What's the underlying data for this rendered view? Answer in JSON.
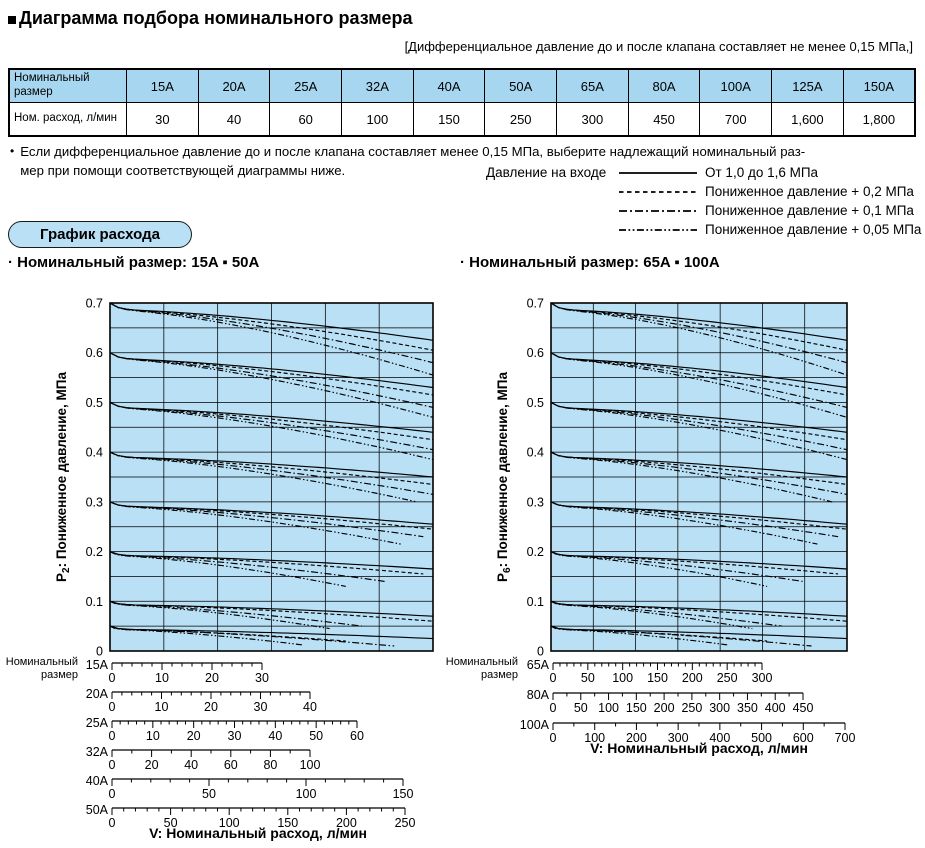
{
  "page": {
    "title": "Диаграмма подбора номинального размера",
    "note": "[Дифференциальное давление до и после клапана составляет не менее 0,15 МПа,]"
  },
  "bullet_note": {
    "bullet": "•",
    "lines": [
      "Если дифференциальное давление до и после клапана составляет менее 0,15 МПа, выберите надлежащий номинальный раз-",
      "мер при помощи соответствующей диаграммы ниже."
    ]
  },
  "size_table": {
    "row1_header": "Номинальный размер",
    "row2_header": "Ном. расход, л/мин",
    "sizes": [
      "15A",
      "20A",
      "25A",
      "32A",
      "40A",
      "50A",
      "65A",
      "80A",
      "100A",
      "125A",
      "150A"
    ],
    "flows": [
      "30",
      "40",
      "60",
      "100",
      "150",
      "250",
      "300",
      "450",
      "700",
      "1,600",
      "1,800"
    ]
  },
  "legend": {
    "label": "Давление на входе",
    "items": [
      {
        "style": "solid",
        "text": "От 1,0 до 1,6 МПа"
      },
      {
        "style": "dashed",
        "text": "Пониженное давление + 0,2 МПа"
      },
      {
        "style": "dashdot",
        "text": "Пониженное давление + 0,1 МПа"
      },
      {
        "style": "dashdotdot",
        "text": "Пониженное давление + 0,05 МПа"
      }
    ]
  },
  "badge": "График расхода",
  "colors": {
    "table_header": "#a7d7f0",
    "chart_bg": "#b9e0f5",
    "line": "#000000"
  },
  "chart_data": [
    {
      "type": "line",
      "title": "· Номинальный размер:  15A ▪ 50A",
      "ylabel": {
        "base": "P",
        "sub": "2",
        "rest": ": Пониженное давление, МПа"
      },
      "xlabel": "V: Номинальный расход, л/мин",
      "nominal_size_label": [
        "Номинальный",
        "размер"
      ],
      "ylim": [
        0,
        0.7
      ],
      "yticks": [
        "0.7",
        "0.6",
        "0.5",
        "0.4",
        "0.3",
        "0.2",
        "0.1",
        "0"
      ],
      "grid_columns": 6,
      "line_styles": [
        "solid",
        "dashed",
        "dashdot",
        "dashdotdot"
      ],
      "families": [
        {
          "start": 0.7,
          "ends": [
            0.625,
            0.605,
            0.58,
            0.555
          ],
          "end_t": [
            1,
            1,
            1,
            1
          ]
        },
        {
          "start": 0.6,
          "ends": [
            0.53,
            0.515,
            0.49,
            0.47
          ],
          "end_t": [
            1,
            1,
            1,
            1
          ]
        },
        {
          "start": 0.5,
          "ends": [
            0.44,
            0.425,
            0.405,
            0.385
          ],
          "end_t": [
            1,
            1,
            1,
            1
          ]
        },
        {
          "start": 0.4,
          "ends": [
            0.35,
            0.335,
            0.315,
            0.3
          ],
          "end_t": [
            1,
            1,
            1,
            0.95
          ]
        },
        {
          "start": 0.3,
          "ends": [
            0.255,
            0.245,
            0.23,
            0.215
          ],
          "end_t": [
            1,
            1,
            0.97,
            0.9
          ]
        },
        {
          "start": 0.2,
          "ends": [
            0.165,
            0.155,
            0.14,
            0.13
          ],
          "end_t": [
            1,
            0.97,
            0.85,
            0.73
          ]
        },
        {
          "start": 0.1,
          "ends": [
            0.07,
            0.06,
            0.05,
            0.045
          ],
          "end_t": [
            1,
            1,
            0.78,
            0.68
          ]
        },
        {
          "start": 0.05,
          "ends": [
            0.025,
            0.02,
            0.01,
            0.012
          ],
          "end_t": [
            1,
            0.73,
            0.88,
            0.6
          ]
        }
      ],
      "x_scales": [
        {
          "size": "15A",
          "max": 30,
          "labels": [
            0,
            10,
            20,
            30
          ],
          "minor": 2
        },
        {
          "size": "20A",
          "max": 40,
          "labels": [
            0,
            10,
            20,
            30,
            40
          ],
          "minor": 2
        },
        {
          "size": "25A",
          "max": 60,
          "labels": [
            0,
            10,
            20,
            30,
            40,
            50,
            60
          ],
          "minor": 2
        },
        {
          "size": "32A",
          "max": 100,
          "labels": [
            0,
            20,
            40,
            60,
            80,
            100
          ],
          "minor": 10
        },
        {
          "size": "40A",
          "max": 150,
          "labels": [
            0,
            50,
            100,
            150
          ],
          "minor": 10
        },
        {
          "size": "50A",
          "max": 250,
          "labels": [
            0,
            50,
            100,
            150,
            200,
            250
          ],
          "minor": 10
        }
      ]
    },
    {
      "type": "line",
      "title": "· Номинальный размер: 65A ▪ 100A",
      "ylabel": {
        "base": "P",
        "sub": "6",
        "rest": ": Пониженное давление, МПа"
      },
      "xlabel": "V: Номинальный расход, л/мин",
      "nominal_size_label": [
        "Номинальный",
        "размер"
      ],
      "ylim": [
        0,
        0.7
      ],
      "yticks": [
        "0.7",
        "0.6",
        "0.5",
        "0.4",
        "0.3",
        "0.2",
        "0.1",
        "0"
      ],
      "grid_columns": 7,
      "line_styles": [
        "solid",
        "dashed",
        "dashdot",
        "dashdotdot"
      ],
      "families": [
        {
          "start": 0.7,
          "ends": [
            0.625,
            0.605,
            0.58,
            0.555
          ],
          "end_t": [
            1,
            1,
            1,
            1
          ]
        },
        {
          "start": 0.6,
          "ends": [
            0.53,
            0.515,
            0.49,
            0.47
          ],
          "end_t": [
            1,
            1,
            1,
            1
          ]
        },
        {
          "start": 0.5,
          "ends": [
            0.44,
            0.425,
            0.405,
            0.385
          ],
          "end_t": [
            1,
            1,
            1,
            1
          ]
        },
        {
          "start": 0.4,
          "ends": [
            0.35,
            0.335,
            0.315,
            0.3
          ],
          "end_t": [
            1,
            1,
            1,
            0.95
          ]
        },
        {
          "start": 0.3,
          "ends": [
            0.255,
            0.245,
            0.23,
            0.215
          ],
          "end_t": [
            1,
            1,
            0.97,
            0.9
          ]
        },
        {
          "start": 0.2,
          "ends": [
            0.165,
            0.155,
            0.14,
            0.13
          ],
          "end_t": [
            1,
            0.97,
            0.85,
            0.73
          ]
        },
        {
          "start": 0.1,
          "ends": [
            0.07,
            0.06,
            0.05,
            0.045
          ],
          "end_t": [
            1,
            1,
            0.78,
            0.68
          ]
        },
        {
          "start": 0.05,
          "ends": [
            0.025,
            0.02,
            0.01,
            0.012
          ],
          "end_t": [
            1,
            0.73,
            0.88,
            0.6
          ]
        }
      ],
      "x_scales": [
        {
          "size": "65A",
          "max": 300,
          "labels": [
            0,
            50,
            100,
            150,
            200,
            250,
            300
          ],
          "minor": 10
        },
        {
          "size": "80A",
          "max": 450,
          "labels": [
            0,
            50,
            100,
            150,
            200,
            250,
            300,
            350,
            400,
            450
          ],
          "minor": 25
        },
        {
          "size": "100A",
          "max": 700,
          "labels": [
            0,
            100,
            200,
            300,
            400,
            500,
            600,
            700
          ],
          "minor": 50
        }
      ]
    }
  ]
}
